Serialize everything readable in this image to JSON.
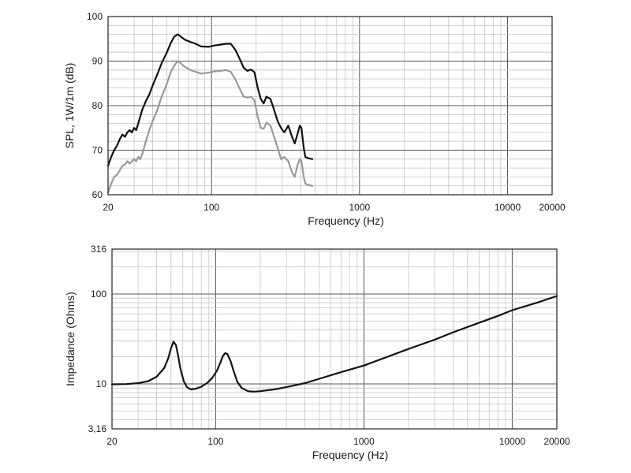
{
  "chart_data": [
    {
      "type": "line",
      "xlabel": "Frequency (Hz)",
      "ylabel": "SPL, 1W/1m (dB)",
      "xscale": "log",
      "xlim": [
        20,
        20000
      ],
      "ylim": [
        60,
        100
      ],
      "xticks": [
        {
          "value": 20,
          "label": "20"
        },
        {
          "value": 100,
          "label": "100"
        },
        {
          "value": 1000,
          "label": "1000"
        },
        {
          "value": 10000,
          "label": "10000"
        },
        {
          "value": 20000,
          "label": "20000"
        }
      ],
      "yticks": [
        {
          "value": 60,
          "label": "60"
        },
        {
          "value": 70,
          "label": "70"
        },
        {
          "value": 80,
          "label": "80"
        },
        {
          "value": 90,
          "label": "90"
        },
        {
          "value": 100,
          "label": "100"
        }
      ],
      "grid": true,
      "series": [
        {
          "color": "#111111",
          "points": [
            [
              20,
              66.5
            ],
            [
              21,
              68.5
            ],
            [
              22,
              70
            ],
            [
              23,
              71
            ],
            [
              24,
              72.5
            ],
            [
              25,
              73.5
            ],
            [
              26,
              73
            ],
            [
              27,
              74
            ],
            [
              28,
              74.5
            ],
            [
              29,
              74
            ],
            [
              30,
              75
            ],
            [
              31,
              74.5
            ],
            [
              32,
              76
            ],
            [
              34,
              79
            ],
            [
              36,
              81
            ],
            [
              38,
              82.5
            ],
            [
              40,
              84.5
            ],
            [
              43,
              87
            ],
            [
              46,
              89.5
            ],
            [
              50,
              92
            ],
            [
              53,
              94
            ],
            [
              56,
              95.5
            ],
            [
              59,
              96
            ],
            [
              62,
              95.5
            ],
            [
              66,
              94.8
            ],
            [
              72,
              94.3
            ],
            [
              78,
              93.9
            ],
            [
              85,
              93.3
            ],
            [
              95,
              93.2
            ],
            [
              105,
              93.5
            ],
            [
              115,
              93.7
            ],
            [
              125,
              93.9
            ],
            [
              135,
              93.9
            ],
            [
              145,
              92.5
            ],
            [
              155,
              90.5
            ],
            [
              165,
              88.5
            ],
            [
              175,
              87.8
            ],
            [
              185,
              88.1
            ],
            [
              195,
              87.5
            ],
            [
              205,
              84
            ],
            [
              215,
              81.5
            ],
            [
              225,
              80.5
            ],
            [
              235,
              82
            ],
            [
              250,
              81.5
            ],
            [
              265,
              79
            ],
            [
              280,
              76.5
            ],
            [
              295,
              75
            ],
            [
              310,
              74
            ],
            [
              330,
              75.5
            ],
            [
              350,
              73
            ],
            [
              365,
              71.5
            ],
            [
              380,
              73.5
            ],
            [
              395,
              75.5
            ],
            [
              405,
              75
            ],
            [
              420,
              70.5
            ],
            [
              430,
              68.5
            ],
            [
              450,
              68.2
            ],
            [
              480,
              68
            ]
          ]
        },
        {
          "color": "#999999",
          "points": [
            [
              20,
              60.5
            ],
            [
              21,
              62.5
            ],
            [
              22,
              64
            ],
            [
              23,
              64.5
            ],
            [
              24,
              65.5
            ],
            [
              25,
              66.5
            ],
            [
              26,
              66.8
            ],
            [
              27,
              67.5
            ],
            [
              28,
              67
            ],
            [
              29,
              67.5
            ],
            [
              30,
              68
            ],
            [
              31,
              67.5
            ],
            [
              32,
              68.5
            ],
            [
              33,
              68
            ],
            [
              34,
              69
            ],
            [
              36,
              72
            ],
            [
              38,
              74.5
            ],
            [
              40,
              76.5
            ],
            [
              43,
              79
            ],
            [
              46,
              82
            ],
            [
              50,
              85
            ],
            [
              53,
              87.5
            ],
            [
              56,
              89
            ],
            [
              59,
              90
            ],
            [
              62,
              89.5
            ],
            [
              66,
              88.7
            ],
            [
              72,
              88
            ],
            [
              78,
              87.6
            ],
            [
              85,
              87.2
            ],
            [
              95,
              87.4
            ],
            [
              105,
              87.7
            ],
            [
              115,
              87.8
            ],
            [
              125,
              88
            ],
            [
              135,
              87.6
            ],
            [
              145,
              85.8
            ],
            [
              155,
              83.8
            ],
            [
              165,
              82
            ],
            [
              175,
              81.8
            ],
            [
              185,
              82
            ],
            [
              195,
              81.2
            ],
            [
              205,
              77.5
            ],
            [
              215,
              75
            ],
            [
              225,
              74.8
            ],
            [
              235,
              76.2
            ],
            [
              250,
              75.5
            ],
            [
              265,
              73
            ],
            [
              280,
              70.5
            ],
            [
              295,
              68
            ],
            [
              310,
              68.5
            ],
            [
              330,
              67.5
            ],
            [
              350,
              65
            ],
            [
              365,
              64
            ],
            [
              380,
              66.5
            ],
            [
              395,
              68
            ],
            [
              405,
              67.5
            ],
            [
              420,
              64
            ],
            [
              430,
              62.5
            ],
            [
              450,
              62.2
            ],
            [
              480,
              62
            ]
          ]
        }
      ]
    },
    {
      "type": "line",
      "xlabel": "Frequency (Hz)",
      "ylabel": "Impedance (Ohms)",
      "xscale": "log",
      "yscale": "log",
      "xlim": [
        20,
        20000
      ],
      "ylim": [
        3.16,
        316
      ],
      "xticks": [
        {
          "value": 20,
          "label": "20"
        },
        {
          "value": 100,
          "label": "100"
        },
        {
          "value": 1000,
          "label": "1000"
        },
        {
          "value": 10000,
          "label": "10000"
        },
        {
          "value": 20000,
          "label": "20000"
        }
      ],
      "yticks": [
        {
          "value": 3.16,
          "label": "3,16"
        },
        {
          "value": 10,
          "label": "10"
        },
        {
          "value": 100,
          "label": "100"
        },
        {
          "value": 316,
          "label": "316"
        }
      ],
      "grid": true,
      "series": [
        {
          "color": "#111111",
          "points": [
            [
              20,
              9.9
            ],
            [
              25,
              9.95
            ],
            [
              30,
              10.2
            ],
            [
              35,
              10.7
            ],
            [
              40,
              12
            ],
            [
              45,
              15
            ],
            [
              48,
              19.5
            ],
            [
              50,
              25
            ],
            [
              52,
              29.5
            ],
            [
              54,
              27
            ],
            [
              56,
              20
            ],
            [
              58,
              14.5
            ],
            [
              61,
              10.7
            ],
            [
              64,
              9.2
            ],
            [
              68,
              8.7
            ],
            [
              73,
              8.8
            ],
            [
              80,
              9.3
            ],
            [
              88,
              10.3
            ],
            [
              95,
              11.7
            ],
            [
              102,
              14
            ],
            [
              108,
              17.5
            ],
            [
              112,
              20.5
            ],
            [
              116,
              22
            ],
            [
              120,
              21.5
            ],
            [
              126,
              18
            ],
            [
              132,
              14
            ],
            [
              140,
              10.5
            ],
            [
              150,
              9.0
            ],
            [
              165,
              8.3
            ],
            [
              180,
              8.2
            ],
            [
              200,
              8.3
            ],
            [
              250,
              8.7
            ],
            [
              300,
              9.2
            ],
            [
              400,
              10.2
            ],
            [
              500,
              11.4
            ],
            [
              700,
              13.5
            ],
            [
              1000,
              16
            ],
            [
              1500,
              20.5
            ],
            [
              2000,
              24.5
            ],
            [
              3000,
              31
            ],
            [
              4000,
              37.5
            ],
            [
              6000,
              48
            ],
            [
              8000,
              57
            ],
            [
              10000,
              66
            ],
            [
              15000,
              81
            ],
            [
              20000,
              95
            ]
          ]
        }
      ]
    }
  ]
}
